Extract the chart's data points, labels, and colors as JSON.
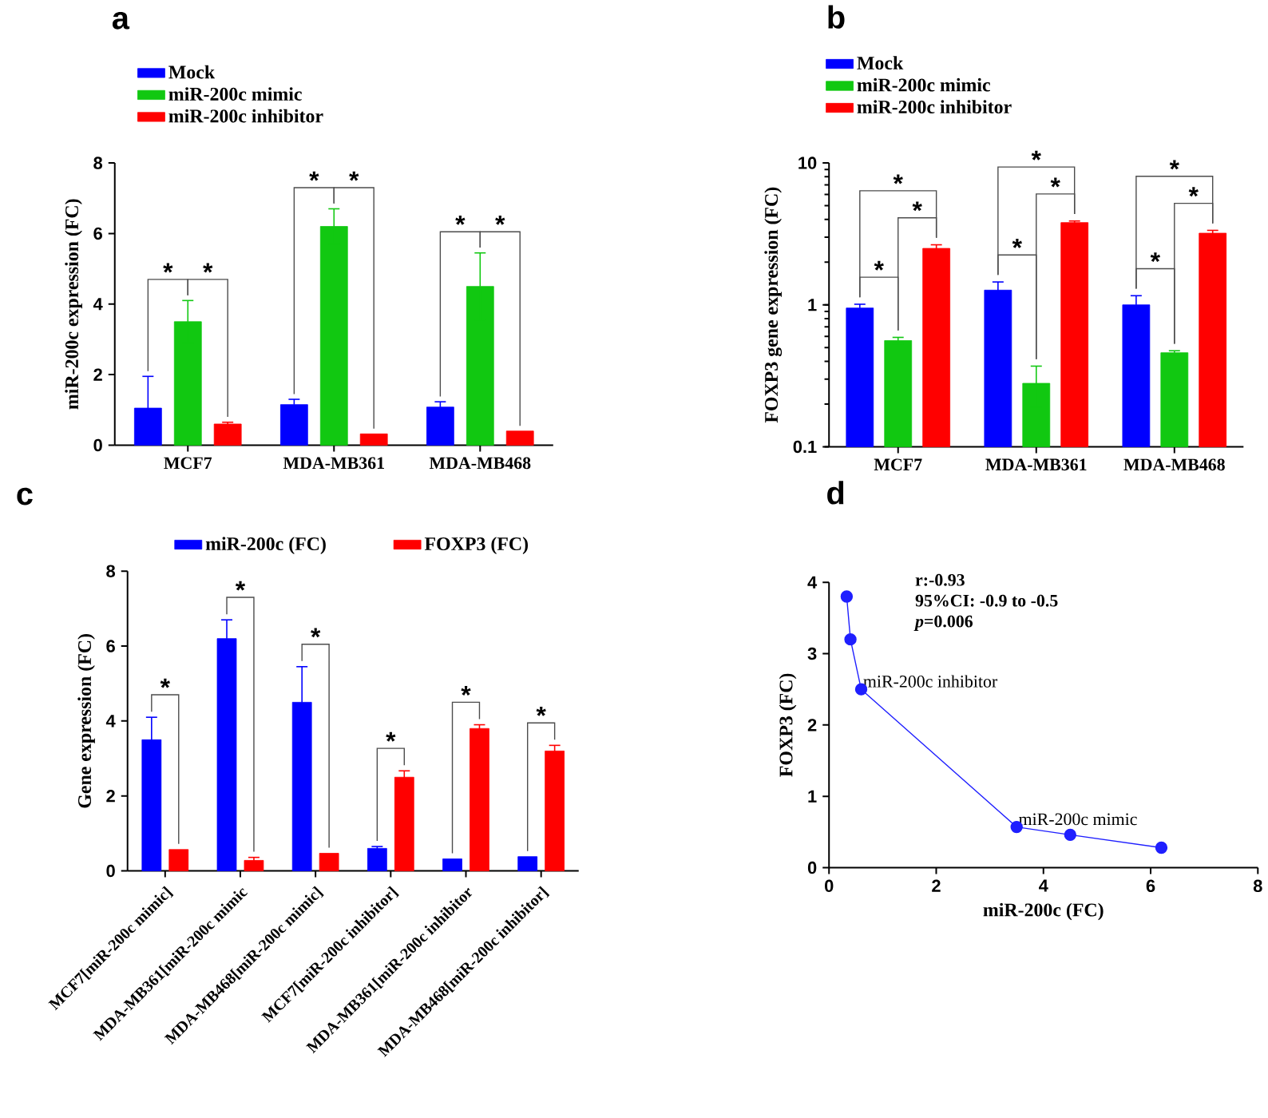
{
  "chart_data": [
    {
      "type": "bar",
      "title": "a",
      "ylabel": "miR-200c expression (FC)",
      "categories": [
        "MCF7",
        "MDA-MB361",
        "MDA-MB468"
      ],
      "series": [
        {
          "name": "Mock",
          "color": "#0000ff",
          "values": [
            1.05,
            1.15,
            1.08
          ],
          "errors": [
            0.9,
            0.15,
            0.15
          ]
        },
        {
          "name": "miR-200c mimic",
          "color": "#11c811",
          "values": [
            3.5,
            6.2,
            4.5
          ],
          "errors": [
            0.6,
            0.5,
            0.95
          ]
        },
        {
          "name": "miR-200c inhibitor",
          "color": "#ff0000",
          "values": [
            0.6,
            0.32,
            0.4
          ],
          "errors": [
            0.05,
            null,
            null
          ]
        }
      ],
      "ylim": [
        0,
        8
      ],
      "yticks": [
        0,
        2,
        4,
        6,
        8
      ],
      "legend": "top left",
      "annotations": [
        {
          "text": "*",
          "x": "MCF7",
          "y": 3.5
        },
        {
          "text": "*",
          "x": "MCF7",
          "y": 3.5
        },
        {
          "text": "*",
          "x": "MDA-MB361",
          "y": 6.2
        },
        {
          "text": "*",
          "x": "MDA-MB361",
          "y": 6.2
        },
        {
          "text": "*",
          "x": "MDA-MB468",
          "y": 4.5
        },
        {
          "text": "*",
          "x": "MDA-MB468",
          "y": 4.5
        }
      ]
    },
    {
      "type": "bar",
      "title": "b",
      "ylabel": "FOXP3 gene expression (FC)",
      "categories": [
        "MCF7",
        "MDA-MB361",
        "MDA-MB468"
      ],
      "series": [
        {
          "name": "Mock",
          "color": "#0000ff",
          "values": [
            0.95,
            1.27,
            1.0
          ],
          "errors": [
            0.06,
            0.18,
            0.16
          ]
        },
        {
          "name": "miR-200c mimic",
          "color": "#11c811",
          "values": [
            0.56,
            0.28,
            0.46
          ],
          "errors": [
            0.03,
            0.09,
            0.015
          ]
        },
        {
          "name": "miR-200c inhibitor",
          "color": "#ff0000",
          "values": [
            2.5,
            3.8,
            3.2
          ],
          "errors": [
            0.15,
            0.1,
            0.15
          ]
        }
      ],
      "ylim": [
        0.1,
        10
      ],
      "yticks": [
        0.1,
        1,
        10
      ],
      "log": "y",
      "legend": "top left",
      "annotations": [
        "*",
        "*",
        "*",
        "*",
        "*",
        "*",
        "*",
        "*",
        "*"
      ]
    },
    {
      "type": "bar",
      "title": "c",
      "ylabel": "Gene expression (FC)",
      "categories": [
        "MCF7[miR-200c mimic]",
        "MDA-MB361[miR-200c mimic",
        "MDA-MB468[miR-200c mimic]",
        "MCF7[miR-200c inhibitor]",
        "MDA-MB361[miR-200c inhibitor",
        "MDA-MB468[miR-200c inhibitor]"
      ],
      "series": [
        {
          "name": "miR-200c (FC)",
          "color": "#0000ff",
          "values": [
            3.5,
            6.2,
            4.5,
            0.6,
            0.32,
            0.38
          ],
          "errors": [
            0.6,
            0.5,
            0.95,
            0.05,
            null,
            null
          ]
        },
        {
          "name": "FOXP3 (FC)",
          "color": "#ff0000",
          "values": [
            0.57,
            0.28,
            0.47,
            2.5,
            3.8,
            3.2
          ],
          "errors": [
            null,
            0.08,
            null,
            0.17,
            0.1,
            0.15
          ]
        }
      ],
      "ylim": [
        0,
        8
      ],
      "yticks": [
        0,
        2,
        4,
        6,
        8
      ],
      "legend": "top",
      "annotations": [
        {
          "text": "*",
          "x": "MCF7[miR-200c mimic]",
          "y": 3.5
        },
        {
          "text": "*",
          "x": "MDA-MB361[miR-200c mimic",
          "y": 6.2
        },
        {
          "text": "*",
          "x": "MDA-MB468[miR-200c mimic]",
          "y": 4.5
        },
        {
          "text": "*",
          "x": "MCF7[miR-200c inhibitor]",
          "y": 2.5
        },
        {
          "text": "*",
          "x": "MDA-MB361[miR-200c inhibitor",
          "y": 3.8
        },
        {
          "text": "*",
          "x": "MDA-MB468[miR-200c inhibitor]",
          "y": 3.2
        }
      ]
    },
    {
      "type": "line",
      "title": "d",
      "xlabel": "miR-200c (FC)",
      "ylabel": "FOXP3 (FC)",
      "x": [
        0.33,
        0.4,
        0.6,
        3.5,
        4.5,
        6.2
      ],
      "values": [
        3.8,
        3.2,
        2.5,
        0.57,
        0.46,
        0.28
      ],
      "color": "#1f1fff",
      "marker": "circle",
      "xlim": [
        0,
        8
      ],
      "xticks": [
        0,
        2,
        4,
        6,
        8
      ],
      "ylim": [
        0,
        4
      ],
      "yticks": [
        0,
        1,
        2,
        3,
        4
      ],
      "annotations": [
        "r:-0.93",
        "95%CI: -0.9 to -0.5",
        "*p*=0.006",
        {
          "text": "miR-200c inhibitor",
          "x": 0.6,
          "y": 2.5
        },
        {
          "text": "miR-200c mimic",
          "x": 3.5,
          "y": 0.57
        }
      ]
    }
  ]
}
